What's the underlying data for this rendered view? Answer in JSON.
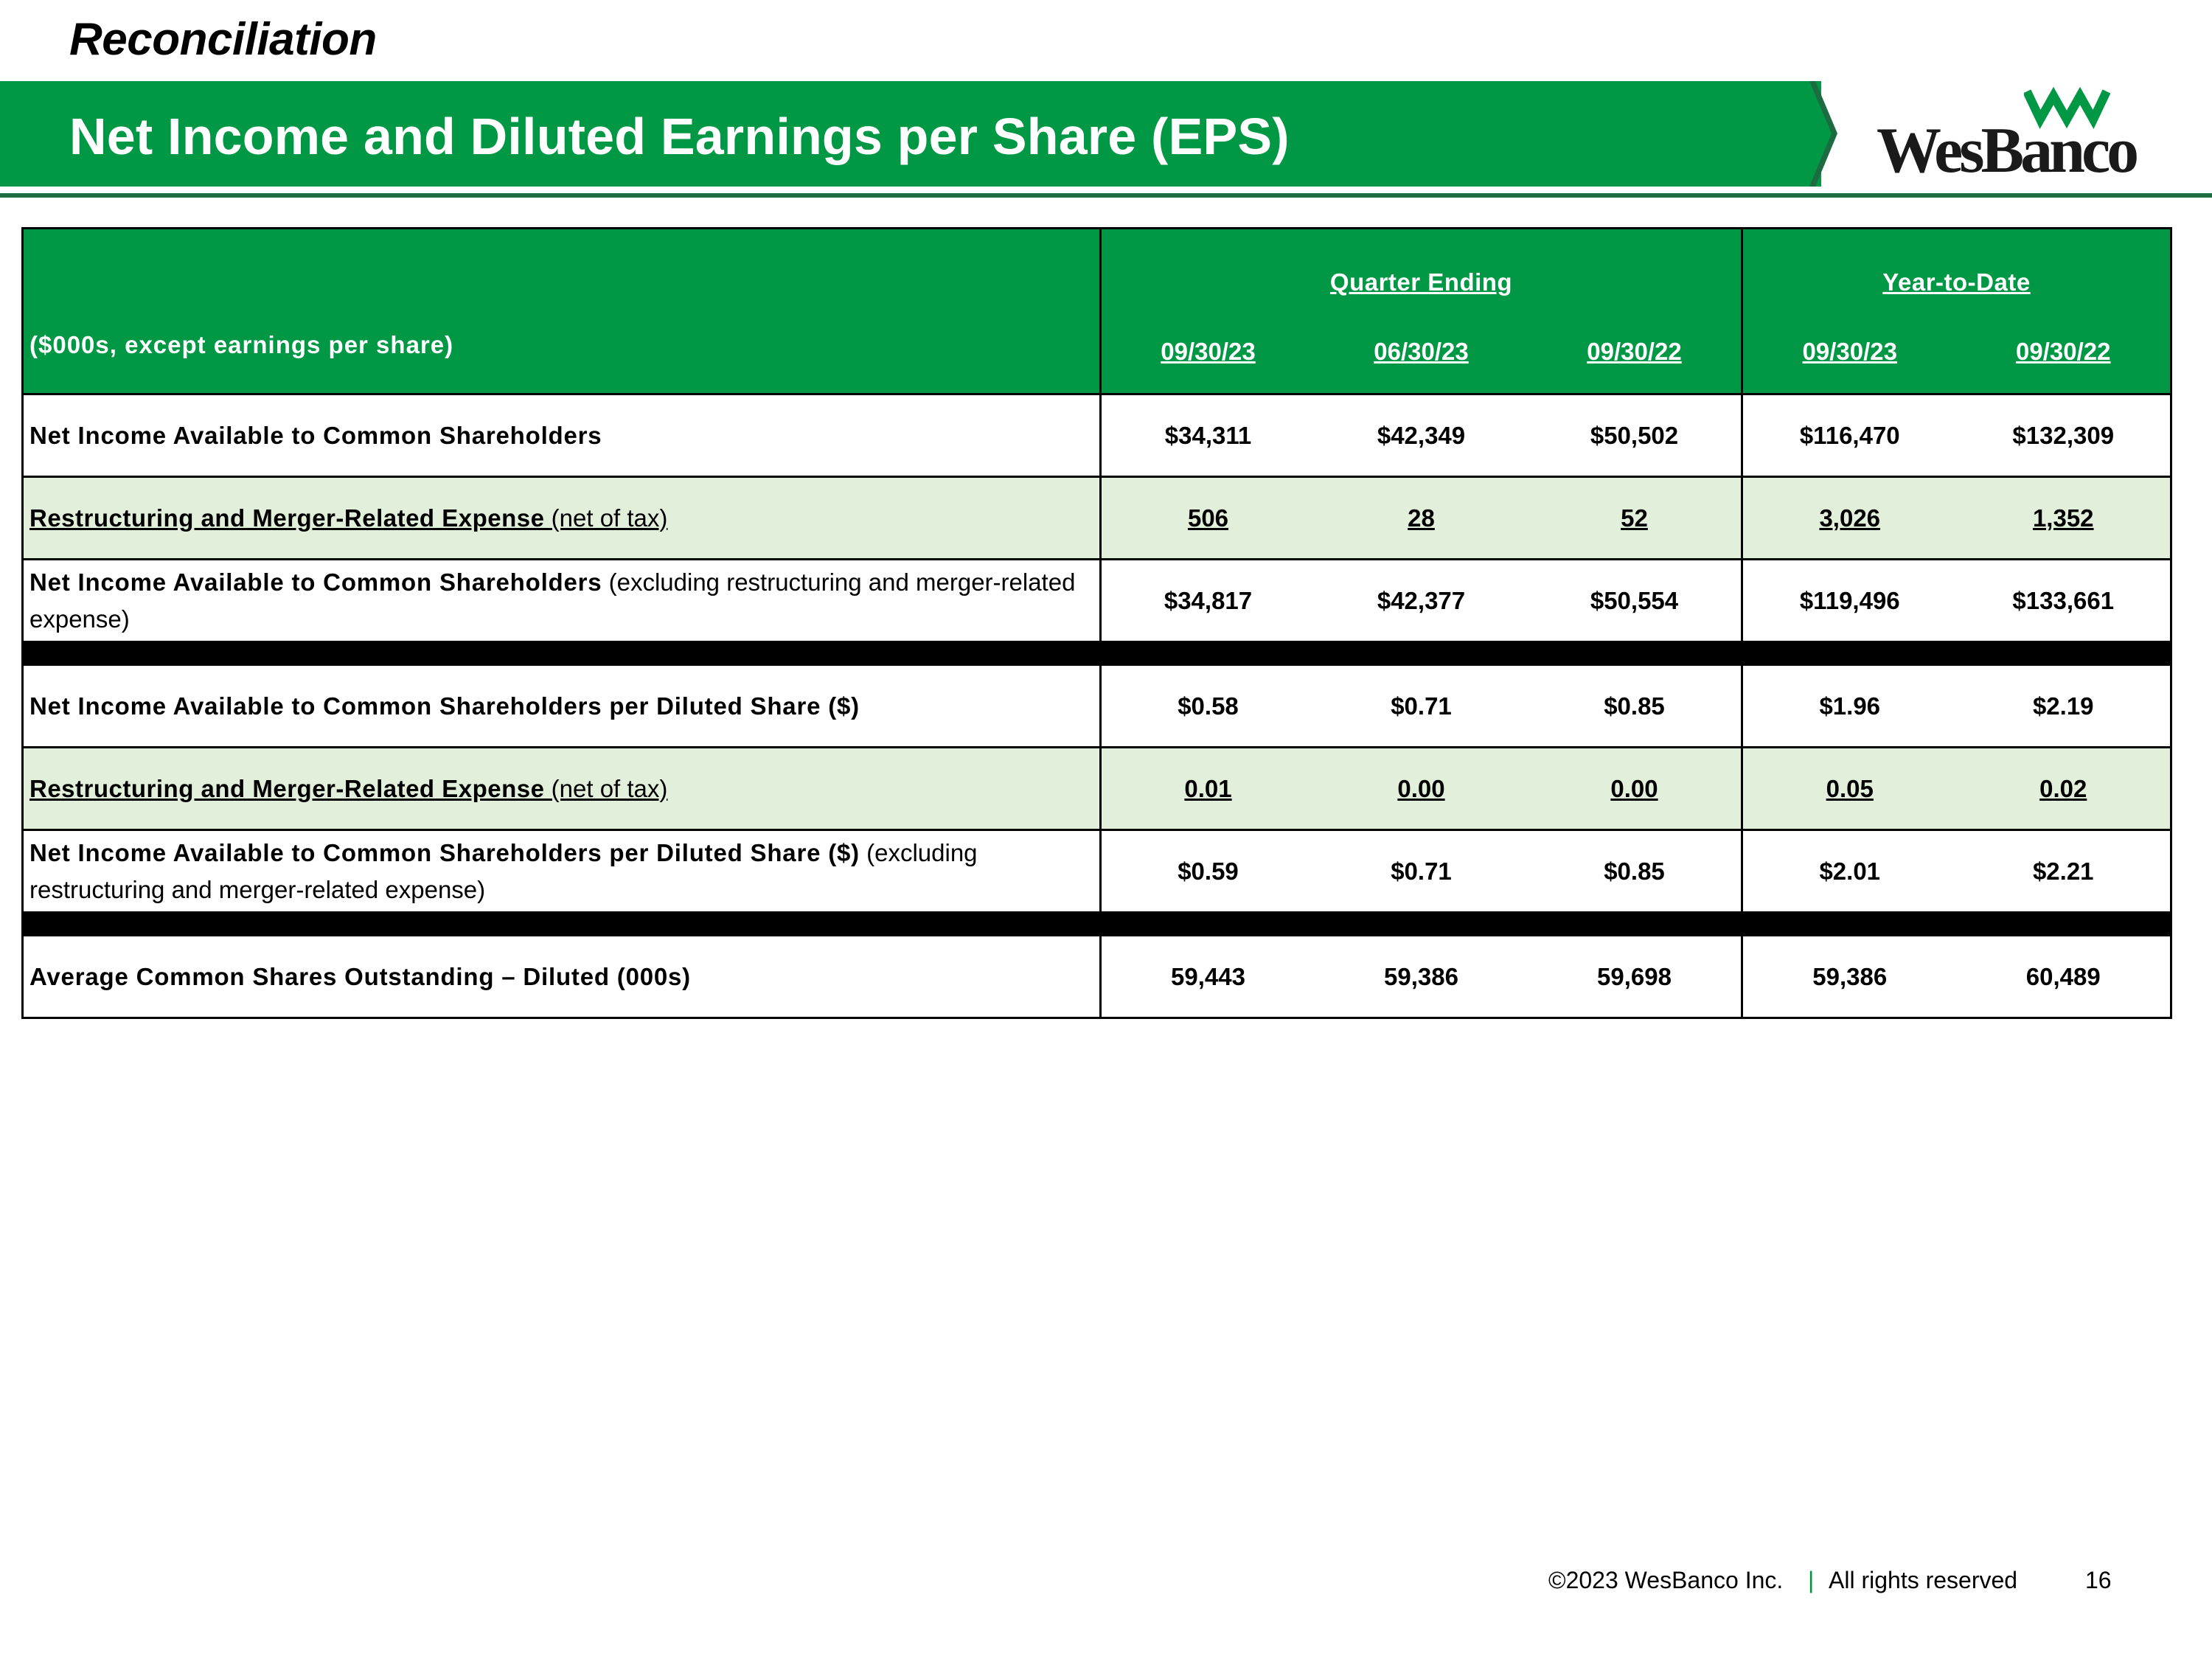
{
  "header": {
    "kicker": "Reconciliation",
    "title": "Net Income and Diluted Earnings per Share (EPS)",
    "logo_text": "WesBanco",
    "brand_color": "#009845"
  },
  "table": {
    "unit_label": "($000s, except earnings per share)",
    "group_quarter": "Quarter Ending",
    "group_ytd": "Year-to-Date",
    "dates_quarter": [
      "09/30/23",
      "06/30/23",
      "09/30/22"
    ],
    "dates_ytd": [
      "09/30/23",
      "09/30/22"
    ],
    "rows": [
      {
        "bold": "Net Income Available to Common Shareholders",
        "rest": "",
        "values": [
          "$34,311",
          "$42,349",
          "$50,502",
          "$116,470",
          "$132,309"
        ]
      },
      {
        "bold": "Restructuring and Merger-Related Expense",
        "rest": " (net of tax)",
        "values": [
          "506",
          "28",
          "52",
          "3,026",
          "1,352"
        ]
      },
      {
        "bold": "Net Income Available to Common Shareholders",
        "rest": " (excluding restructuring and merger-related expense)",
        "values": [
          "$34,817",
          "$42,377",
          "$50,554",
          "$119,496",
          "$133,661"
        ]
      },
      {
        "bold": "Net Income Available to Common Shareholders per Diluted Share ($)",
        "rest": "",
        "values": [
          "$0.58",
          "$0.71",
          "$0.85",
          "$1.96",
          "$2.19"
        ]
      },
      {
        "bold": "Restructuring and Merger-Related Expense",
        "rest": " (net of tax)",
        "values": [
          "0.01",
          "0.00",
          "0.00",
          "0.05",
          "0.02"
        ]
      },
      {
        "bold": "Net Income Available to Common Shareholders per Diluted Share ($)",
        "rest": " (excluding restructuring and merger-related expense)",
        "values": [
          "$0.59",
          "$0.71",
          "$0.85",
          "$2.01",
          "$2.21"
        ]
      },
      {
        "bold": "Average Common Shares Outstanding – Diluted (000s)",
        "rest": "",
        "values": [
          "59,443",
          "59,386",
          "59,698",
          "59,386",
          "60,489"
        ]
      }
    ]
  },
  "footer": {
    "copyright": "©2023 WesBanco Inc.",
    "separator": "|",
    "rights": "All rights reserved",
    "page": "16"
  }
}
